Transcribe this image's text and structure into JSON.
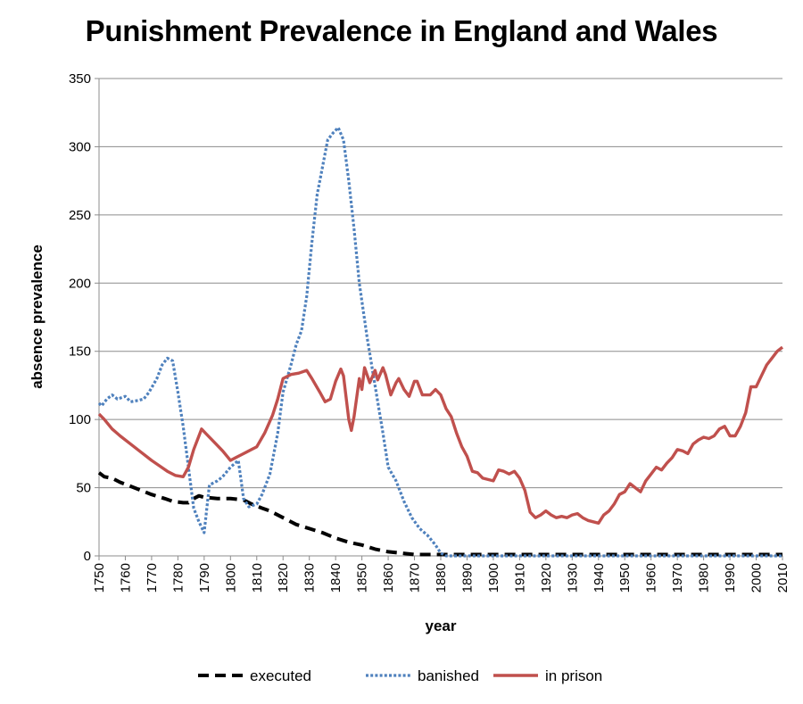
{
  "chart_data": {
    "type": "line",
    "title": "Punishment Prevalence in England and Wales",
    "xlabel": "year",
    "ylabel": "absence prevalence",
    "xlim": [
      1750,
      2010
    ],
    "ylim": [
      0,
      350
    ],
    "x_ticks": [
      1750,
      1760,
      1770,
      1780,
      1790,
      1800,
      1810,
      1820,
      1830,
      1840,
      1850,
      1860,
      1870,
      1880,
      1890,
      1900,
      1910,
      1920,
      1930,
      1940,
      1950,
      1960,
      1970,
      1980,
      1990,
      2000,
      2010
    ],
    "y_ticks": [
      0,
      50,
      100,
      150,
      200,
      250,
      300,
      350
    ],
    "grid": "horizontal",
    "legend": "bottom",
    "series": [
      {
        "name": "executed",
        "style": "dashed",
        "color": "#000000",
        "points": [
          [
            1750,
            61
          ],
          [
            1752,
            58
          ],
          [
            1755,
            57
          ],
          [
            1758,
            54
          ],
          [
            1762,
            51
          ],
          [
            1766,
            48
          ],
          [
            1770,
            45
          ],
          [
            1775,
            42
          ],
          [
            1778,
            40
          ],
          [
            1782,
            39
          ],
          [
            1784,
            39
          ],
          [
            1786,
            42
          ],
          [
            1788,
            44
          ],
          [
            1790,
            43
          ],
          [
            1795,
            42
          ],
          [
            1800,
            42
          ],
          [
            1805,
            41
          ],
          [
            1808,
            38
          ],
          [
            1812,
            35
          ],
          [
            1815,
            33
          ],
          [
            1820,
            28
          ],
          [
            1825,
            23
          ],
          [
            1830,
            20
          ],
          [
            1835,
            17
          ],
          [
            1840,
            13
          ],
          [
            1845,
            10
          ],
          [
            1850,
            8
          ],
          [
            1855,
            5
          ],
          [
            1860,
            3
          ],
          [
            1865,
            2
          ],
          [
            1870,
            1
          ],
          [
            1880,
            1
          ],
          [
            1890,
            1
          ],
          [
            1900,
            1
          ],
          [
            1920,
            1
          ],
          [
            1950,
            1
          ],
          [
            1980,
            1
          ],
          [
            2010,
            1
          ]
        ]
      },
      {
        "name": "banished",
        "style": "dotted",
        "color": "#4F81BD",
        "points": [
          [
            1750,
            112
          ],
          [
            1751,
            110
          ],
          [
            1753,
            115
          ],
          [
            1755,
            118
          ],
          [
            1757,
            115
          ],
          [
            1760,
            117
          ],
          [
            1762,
            113
          ],
          [
            1765,
            114
          ],
          [
            1767,
            115
          ],
          [
            1769,
            120
          ],
          [
            1772,
            130
          ],
          [
            1774,
            140
          ],
          [
            1776,
            145
          ],
          [
            1778,
            143
          ],
          [
            1780,
            120
          ],
          [
            1782,
            95
          ],
          [
            1784,
            65
          ],
          [
            1786,
            35
          ],
          [
            1788,
            25
          ],
          [
            1790,
            17
          ],
          [
            1792,
            52
          ],
          [
            1795,
            55
          ],
          [
            1797,
            58
          ],
          [
            1800,
            65
          ],
          [
            1803,
            70
          ],
          [
            1805,
            42
          ],
          [
            1807,
            36
          ],
          [
            1810,
            38
          ],
          [
            1812,
            45
          ],
          [
            1815,
            60
          ],
          [
            1818,
            90
          ],
          [
            1820,
            120
          ],
          [
            1823,
            140
          ],
          [
            1825,
            155
          ],
          [
            1827,
            165
          ],
          [
            1829,
            190
          ],
          [
            1831,
            230
          ],
          [
            1833,
            265
          ],
          [
            1835,
            285
          ],
          [
            1837,
            305
          ],
          [
            1839,
            310
          ],
          [
            1841,
            314
          ],
          [
            1843,
            305
          ],
          [
            1845,
            275
          ],
          [
            1847,
            240
          ],
          [
            1849,
            200
          ],
          [
            1852,
            160
          ],
          [
            1855,
            125
          ],
          [
            1858,
            90
          ],
          [
            1860,
            65
          ],
          [
            1863,
            55
          ],
          [
            1866,
            40
          ],
          [
            1869,
            28
          ],
          [
            1872,
            20
          ],
          [
            1875,
            15
          ],
          [
            1878,
            8
          ],
          [
            1880,
            2
          ],
          [
            1882,
            0
          ],
          [
            1890,
            0
          ],
          [
            1900,
            0
          ],
          [
            1920,
            0
          ],
          [
            1950,
            0
          ],
          [
            1980,
            0
          ],
          [
            2010,
            0
          ]
        ]
      },
      {
        "name": "in prison",
        "style": "solid",
        "color": "#C0504D",
        "points": [
          [
            1750,
            104
          ],
          [
            1752,
            100
          ],
          [
            1755,
            93
          ],
          [
            1758,
            88
          ],
          [
            1762,
            82
          ],
          [
            1766,
            76
          ],
          [
            1770,
            70
          ],
          [
            1773,
            66
          ],
          [
            1776,
            62
          ],
          [
            1779,
            59
          ],
          [
            1782,
            58
          ],
          [
            1784,
            65
          ],
          [
            1786,
            78
          ],
          [
            1788,
            88
          ],
          [
            1789,
            93
          ],
          [
            1791,
            89
          ],
          [
            1794,
            83
          ],
          [
            1797,
            77
          ],
          [
            1800,
            70
          ],
          [
            1802,
            72
          ],
          [
            1805,
            75
          ],
          [
            1808,
            78
          ],
          [
            1810,
            80
          ],
          [
            1813,
            90
          ],
          [
            1816,
            103
          ],
          [
            1818,
            115
          ],
          [
            1820,
            130
          ],
          [
            1823,
            133
          ],
          [
            1826,
            134
          ],
          [
            1829,
            136
          ],
          [
            1831,
            130
          ],
          [
            1834,
            120
          ],
          [
            1836,
            113
          ],
          [
            1838,
            115
          ],
          [
            1840,
            128
          ],
          [
            1842,
            137
          ],
          [
            1843,
            132
          ],
          [
            1845,
            100
          ],
          [
            1846,
            92
          ],
          [
            1847,
            102
          ],
          [
            1849,
            130
          ],
          [
            1850,
            122
          ],
          [
            1851,
            138
          ],
          [
            1853,
            127
          ],
          [
            1855,
            136
          ],
          [
            1856,
            129
          ],
          [
            1858,
            138
          ],
          [
            1859,
            133
          ],
          [
            1861,
            118
          ],
          [
            1863,
            127
          ],
          [
            1864,
            130
          ],
          [
            1866,
            122
          ],
          [
            1868,
            117
          ],
          [
            1870,
            128
          ],
          [
            1871,
            128
          ],
          [
            1873,
            118
          ],
          [
            1876,
            118
          ],
          [
            1878,
            122
          ],
          [
            1880,
            118
          ],
          [
            1882,
            108
          ],
          [
            1884,
            102
          ],
          [
            1886,
            90
          ],
          [
            1888,
            80
          ],
          [
            1890,
            73
          ],
          [
            1892,
            62
          ],
          [
            1894,
            61
          ],
          [
            1896,
            57
          ],
          [
            1898,
            56
          ],
          [
            1900,
            55
          ],
          [
            1902,
            63
          ],
          [
            1904,
            62
          ],
          [
            1906,
            60
          ],
          [
            1908,
            62
          ],
          [
            1910,
            57
          ],
          [
            1912,
            48
          ],
          [
            1914,
            32
          ],
          [
            1916,
            28
          ],
          [
            1918,
            30
          ],
          [
            1920,
            33
          ],
          [
            1922,
            30
          ],
          [
            1924,
            28
          ],
          [
            1926,
            29
          ],
          [
            1928,
            28
          ],
          [
            1930,
            30
          ],
          [
            1932,
            31
          ],
          [
            1934,
            28
          ],
          [
            1936,
            26
          ],
          [
            1938,
            25
          ],
          [
            1940,
            24
          ],
          [
            1942,
            30
          ],
          [
            1944,
            33
          ],
          [
            1946,
            38
          ],
          [
            1948,
            45
          ],
          [
            1950,
            47
          ],
          [
            1952,
            53
          ],
          [
            1954,
            50
          ],
          [
            1956,
            47
          ],
          [
            1958,
            55
          ],
          [
            1960,
            60
          ],
          [
            1962,
            65
          ],
          [
            1964,
            63
          ],
          [
            1966,
            68
          ],
          [
            1968,
            72
          ],
          [
            1970,
            78
          ],
          [
            1972,
            77
          ],
          [
            1974,
            75
          ],
          [
            1976,
            82
          ],
          [
            1978,
            85
          ],
          [
            1980,
            87
          ],
          [
            1982,
            86
          ],
          [
            1984,
            88
          ],
          [
            1986,
            93
          ],
          [
            1988,
            95
          ],
          [
            1990,
            88
          ],
          [
            1992,
            88
          ],
          [
            1994,
            95
          ],
          [
            1996,
            105
          ],
          [
            1998,
            124
          ],
          [
            2000,
            124
          ],
          [
            2002,
            132
          ],
          [
            2004,
            140
          ],
          [
            2006,
            145
          ],
          [
            2008,
            150
          ],
          [
            2010,
            153
          ]
        ]
      }
    ]
  }
}
